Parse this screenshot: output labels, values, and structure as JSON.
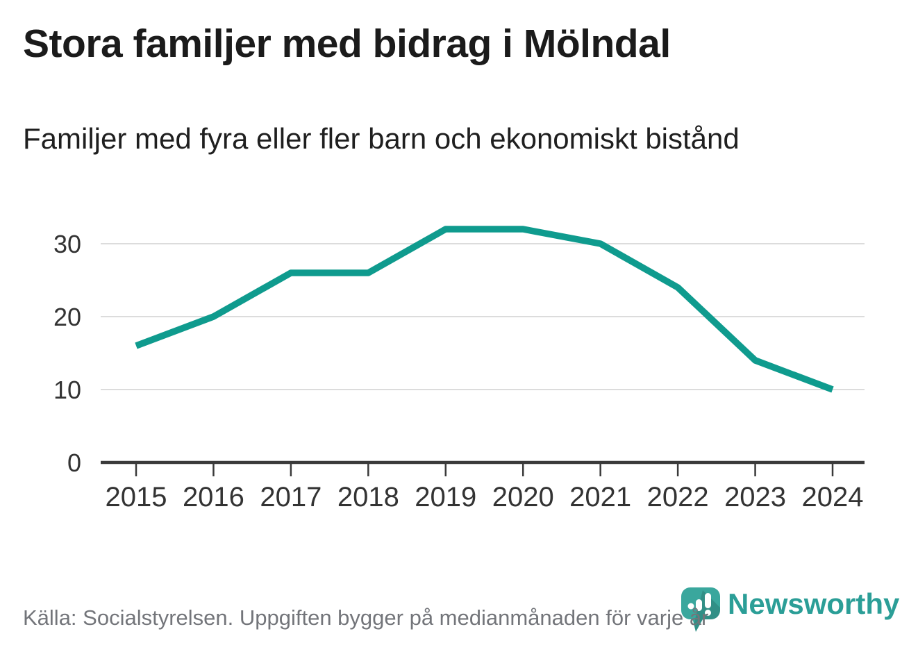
{
  "title": "Stora familjer med bidrag i Mölndal",
  "subtitle": "Familjer med fyra eller fler barn och ekonomiskt bistånd",
  "footer": {
    "source_text": "Källa: Socialstyrelsen. Uppgiften bygger på medianmånaden för varje år"
  },
  "branding": {
    "wordmark": "Newsworthy",
    "icon": "newsworthy-chart-bubble-icon",
    "wordmark_color": "#2b9e97",
    "icon_color": "#3aa79d"
  },
  "chart_data": {
    "type": "line",
    "title": "Stora familjer med bidrag i Mölndal",
    "subtitle": "Familjer med fyra eller fler barn och ekonomiskt bistånd",
    "x": [
      "2015",
      "2016",
      "2017",
      "2018",
      "2019",
      "2020",
      "2021",
      "2022",
      "2023",
      "2024"
    ],
    "series": [
      {
        "name": "Familjer med fyra eller fler barn och ekonomiskt bistånd",
        "values": [
          16,
          20,
          26,
          26,
          32,
          32,
          30,
          24,
          14,
          10
        ],
        "color": "#0f9b8e"
      }
    ],
    "xlabel": "",
    "ylabel": "",
    "ylim": [
      0,
      35
    ],
    "yticks": [
      0,
      10,
      20,
      30
    ],
    "grid": true,
    "legend": false,
    "grid_color": "#dcdcdc",
    "axis_color": "#3a3a3a",
    "tick_label_color": "#333333"
  }
}
